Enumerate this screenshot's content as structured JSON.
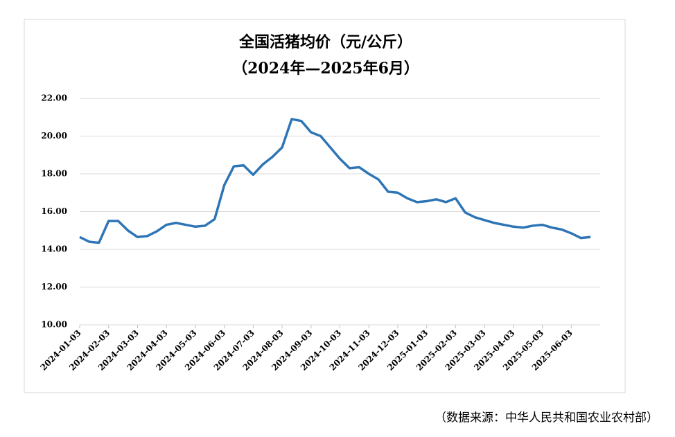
{
  "chart_data": {
    "type": "line",
    "title": "全国活猪均价（元/公斤）",
    "subtitle": "（2024年—2025年6月）",
    "source": "（数据来源：中华人民共和国农业农村部）",
    "categories": [
      "2024-01-03",
      null,
      null,
      "2024-02-03",
      null,
      null,
      "2024-03-03",
      null,
      null,
      "2024-04-03",
      null,
      null,
      "2024-05-03",
      null,
      null,
      "2024-06-03",
      null,
      null,
      "2024-07-03",
      null,
      null,
      "2024-08-03",
      null,
      null,
      "2024-09-03",
      null,
      null,
      "2024-10-03",
      null,
      null,
      "2024-11-03",
      null,
      null,
      "2024-12-03",
      null,
      null,
      "2025-01-03",
      null,
      null,
      "2025-02-03",
      null,
      null,
      "2025-03-03",
      null,
      null,
      "2025-04-03",
      null,
      null,
      "2025-05-03",
      null,
      null,
      "2025-06-03",
      null,
      null
    ],
    "series": [
      {
        "name": "全国活猪均价",
        "color": "#2e75b6",
        "values": [
          14.65,
          14.4,
          14.35,
          15.5,
          15.5,
          15.0,
          14.65,
          14.7,
          14.95,
          15.3,
          15.4,
          15.3,
          15.2,
          15.25,
          15.6,
          17.4,
          18.4,
          18.45,
          17.95,
          18.5,
          18.9,
          19.4,
          20.9,
          20.8,
          20.2,
          20.0,
          19.4,
          18.8,
          18.3,
          18.35,
          18.0,
          17.7,
          17.05,
          17.0,
          16.7,
          16.5,
          16.55,
          16.65,
          16.5,
          16.7,
          15.95,
          15.7,
          15.55,
          15.4,
          15.3,
          15.2,
          15.15,
          15.25,
          15.3,
          15.15,
          15.05,
          14.85,
          14.6,
          14.65
        ]
      }
    ],
    "ylim": [
      10,
      22
    ],
    "yticks": [
      {
        "value": 10,
        "label": "10.00"
      },
      {
        "value": 12,
        "label": "12.00"
      },
      {
        "value": 14,
        "label": "14.00"
      },
      {
        "value": 16,
        "label": "16.00"
      },
      {
        "value": 18,
        "label": "18.00"
      },
      {
        "value": 20,
        "label": "20.00"
      },
      {
        "value": 22,
        "label": "22.00"
      }
    ],
    "grid": true
  }
}
